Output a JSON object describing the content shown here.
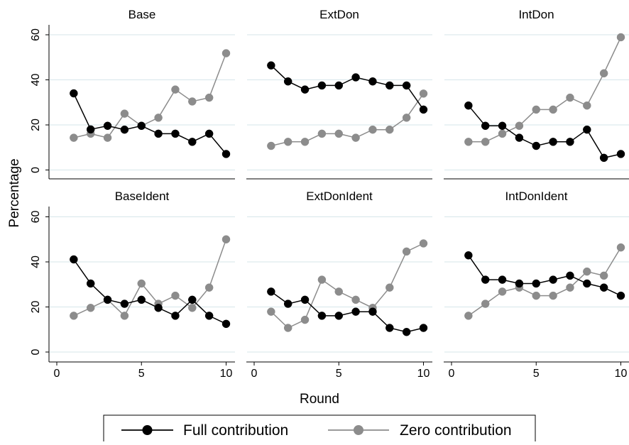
{
  "chart_data": {
    "type": "line",
    "xlabel": "Round",
    "ylabel": "Percentage",
    "xlim": [
      0,
      10
    ],
    "ylim": [
      0,
      60
    ],
    "xticks": [
      0,
      5,
      10
    ],
    "yticks": [
      0,
      20,
      40,
      60
    ],
    "grid": true,
    "legend_position": "bottom",
    "series_styles": [
      {
        "name": "Full contribution",
        "color": "#000000"
      },
      {
        "name": "Zero contribution",
        "color": "#8c8c8c"
      }
    ],
    "panels": [
      {
        "title": "Base",
        "x": [
          1,
          2,
          3,
          4,
          5,
          6,
          7,
          8,
          9,
          10
        ],
        "series": [
          {
            "name": "Full contribution",
            "values": [
              34,
              18,
              19.6,
              17.9,
              19.6,
              16.1,
              16.1,
              12.5,
              16.1,
              7.1
            ]
          },
          {
            "name": "Zero contribution",
            "values": [
              14.3,
              16.1,
              14.3,
              25,
              19.6,
              23.2,
              35.7,
              30.4,
              32.1,
              51.8
            ]
          }
        ]
      },
      {
        "title": "ExtDon",
        "x": [
          1,
          2,
          3,
          4,
          5,
          6,
          7,
          8,
          9,
          10
        ],
        "series": [
          {
            "name": "Full contribution",
            "values": [
              46.4,
              39.3,
              35.7,
              37.5,
              37.5,
              41.1,
              39.3,
              37.5,
              37.5,
              26.8
            ]
          },
          {
            "name": "Zero contribution",
            "values": [
              10.7,
              12.5,
              12.5,
              16.1,
              16.1,
              14.3,
              17.9,
              17.9,
              23.2,
              33.9
            ]
          }
        ]
      },
      {
        "title": "IntDon",
        "x": [
          1,
          2,
          3,
          4,
          5,
          6,
          7,
          8,
          9,
          10
        ],
        "series": [
          {
            "name": "Full contribution",
            "values": [
              28.6,
              19.6,
              19.6,
              14.3,
              10.7,
              12.5,
              12.5,
              17.9,
              5.4,
              7.1
            ]
          },
          {
            "name": "Zero contribution",
            "values": [
              12.5,
              12.5,
              16.1,
              19.6,
              26.8,
              26.8,
              32.1,
              28.6,
              42.9,
              58.9
            ]
          }
        ]
      },
      {
        "title": "BaseIdent",
        "x": [
          1,
          2,
          3,
          4,
          5,
          6,
          7,
          8,
          9,
          10
        ],
        "series": [
          {
            "name": "Full contribution",
            "values": [
              41.1,
              30.4,
              23.2,
              21.4,
              23.2,
              19.6,
              16.1,
              23.2,
              16.1,
              12.5
            ]
          },
          {
            "name": "Zero contribution",
            "values": [
              16.1,
              19.6,
              23.2,
              16.1,
              30.4,
              21.4,
              25,
              19.6,
              28.6,
              50
            ]
          }
        ]
      },
      {
        "title": "ExtDonIdent",
        "x": [
          1,
          2,
          3,
          4,
          5,
          6,
          7,
          8,
          9,
          10
        ],
        "series": [
          {
            "name": "Full contribution",
            "values": [
              26.8,
              21.4,
              23.2,
              16.1,
              16.1,
              17.9,
              17.9,
              10.7,
              8.9,
              10.7
            ]
          },
          {
            "name": "Zero contribution",
            "values": [
              17.9,
              10.7,
              14.3,
              32.1,
              26.8,
              23.2,
              19.6,
              28.6,
              44.6,
              48.2
            ]
          }
        ]
      },
      {
        "title": "IntDonIdent",
        "x": [
          1,
          2,
          3,
          4,
          5,
          6,
          7,
          8,
          9,
          10
        ],
        "series": [
          {
            "name": "Full contribution",
            "values": [
              42.9,
              32.1,
              32.1,
              30.4,
              30.4,
              32.1,
              33.9,
              30.4,
              28.6,
              25
            ]
          },
          {
            "name": "Zero contribution",
            "values": [
              16.1,
              21.4,
              26.8,
              28.6,
              25,
              25,
              28.6,
              35.7,
              33.9,
              46.4
            ]
          }
        ]
      }
    ]
  }
}
